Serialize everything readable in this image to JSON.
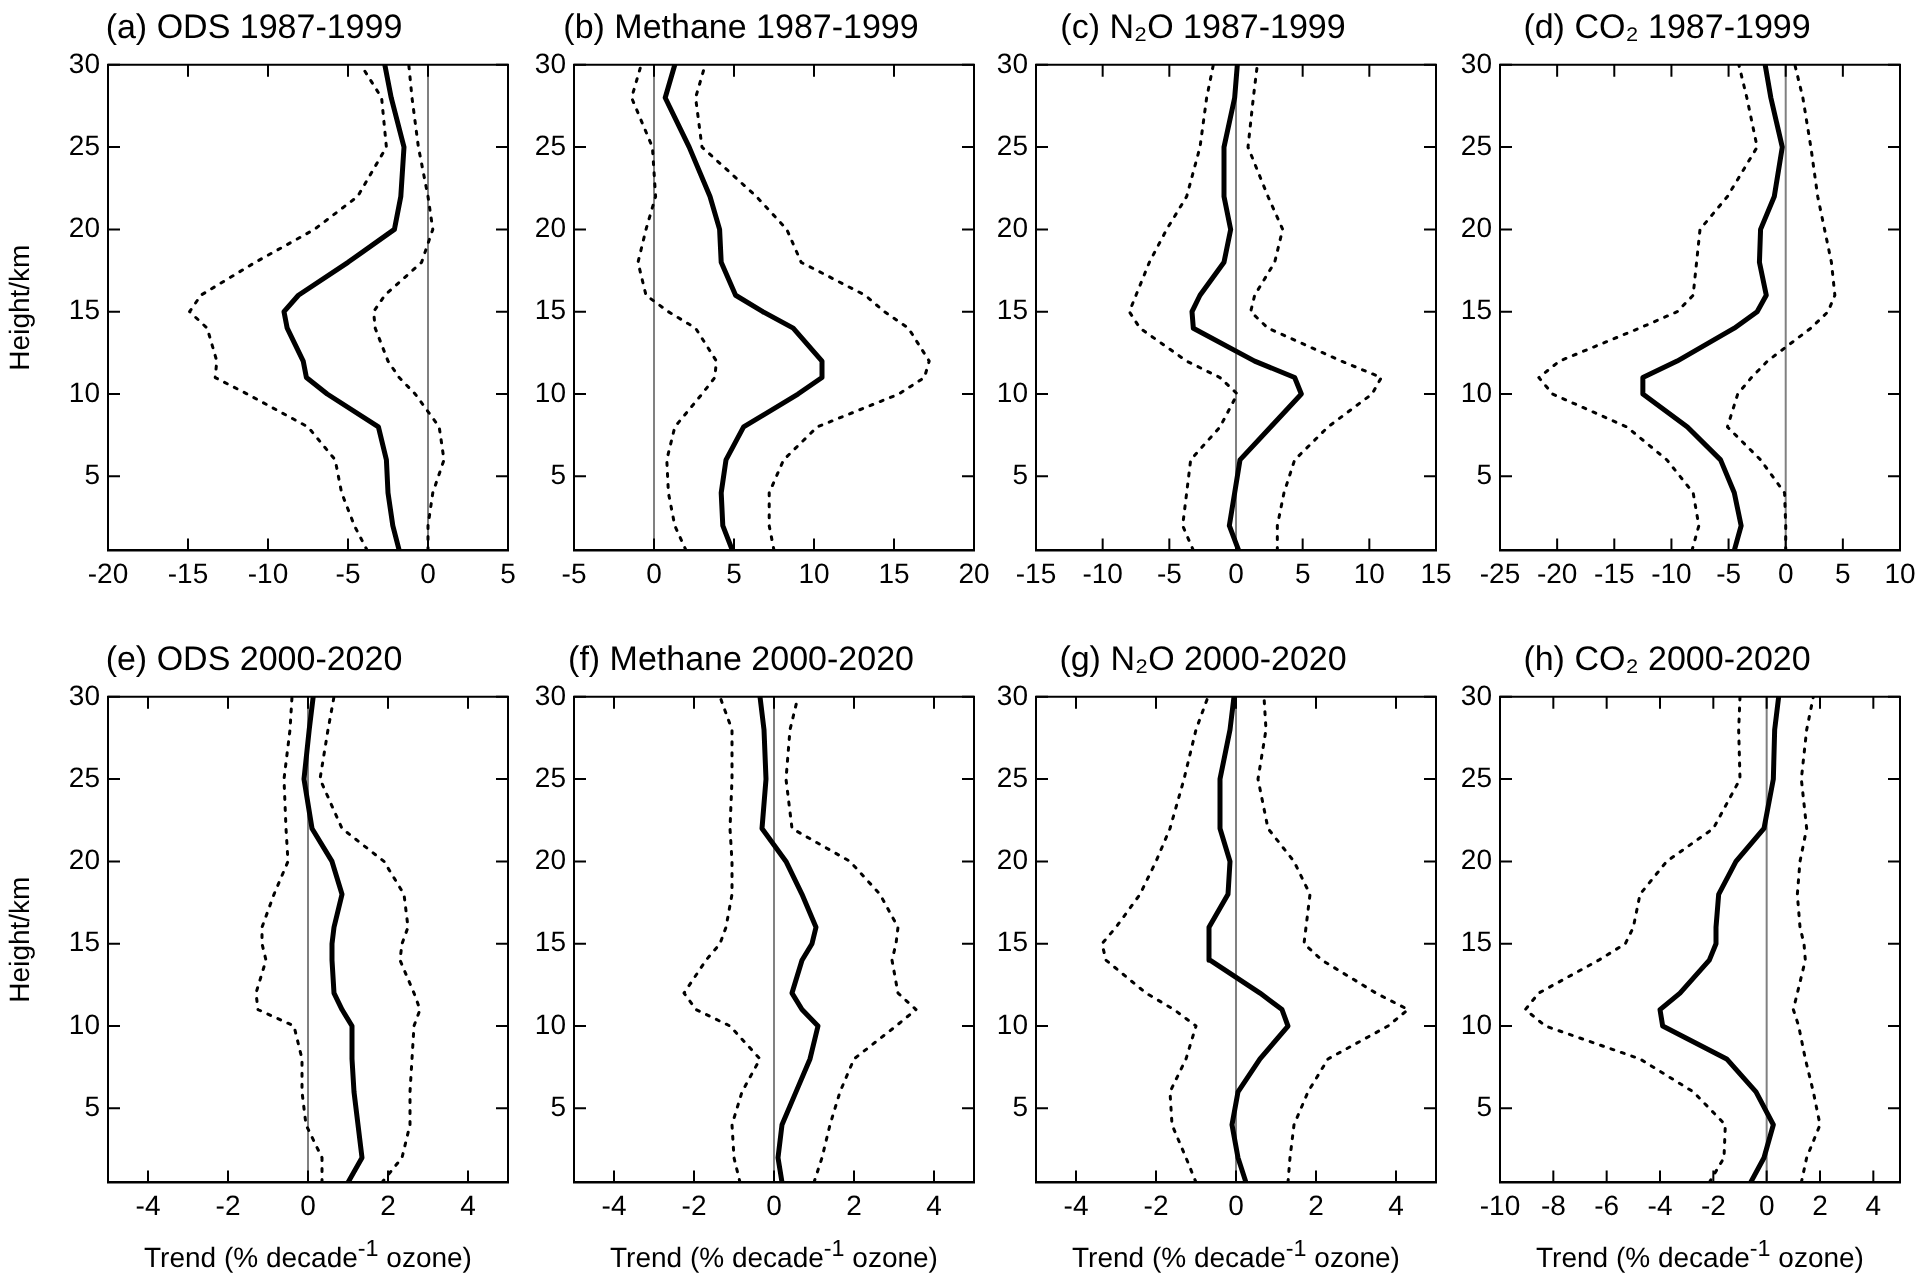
{
  "chart_data": [
    {
      "type": "line",
      "title": "(a) ODS 1987-1999",
      "ylabel": "Height/km",
      "xlim": [
        -20,
        5
      ],
      "xticks": [
        -20,
        -15,
        -10,
        -5,
        0,
        5
      ],
      "ylim": [
        0.5,
        30
      ],
      "yticks": [
        5,
        10,
        15,
        20,
        25,
        30
      ],
      "marker": "none",
      "ref_lines": [
        {
          "axis": "x",
          "value": 0,
          "color": "#808080"
        }
      ],
      "series": [
        {
          "color": "#000000",
          "line_style": "solid",
          "x": [
            -1.8,
            -2.2,
            -2.5,
            -2.6,
            -3.1,
            -6.3,
            -7.6,
            -7.8,
            -8.8,
            -9,
            -8.1,
            -5,
            -2.1,
            -1.7,
            -1.5,
            -2.3,
            -2.7
          ],
          "values": [
            0.5,
            2,
            4,
            6,
            8,
            10,
            11,
            12,
            14,
            15,
            16,
            18,
            20,
            22,
            25,
            28,
            30
          ]
        },
        {
          "color": "#000000",
          "line_style": "dotted",
          "x": [
            -3.8,
            -4.6,
            -5.4,
            -5.8,
            -7.5,
            -11.3,
            -13.3,
            -13.2,
            -13.8,
            -14.9,
            -14.2,
            -10.8,
            -7.1,
            -4.4,
            -2.6,
            -2.9,
            -4.2
          ],
          "values": [
            0.5,
            2,
            4,
            6,
            8,
            10,
            11,
            12,
            14,
            15,
            16,
            18,
            20,
            22,
            25,
            28,
            30
          ]
        },
        {
          "color": "#000000",
          "line_style": "dotted",
          "x": [
            0,
            0,
            0.3,
            1.0,
            0.7,
            -0.8,
            -1.8,
            -2.5,
            -3.3,
            -3.4,
            -2.7,
            -0.4,
            0.3,
            0,
            -0.6,
            -1,
            -1.2
          ],
          "values": [
            0.5,
            2,
            4,
            6,
            8,
            10,
            11,
            12,
            14,
            15,
            16,
            18,
            20,
            22,
            25,
            28,
            30
          ]
        }
      ]
    },
    {
      "type": "line",
      "title": "(b) Methane 1987-1999",
      "xlim": [
        -5,
        20
      ],
      "xticks": [
        -5,
        0,
        5,
        10,
        15,
        20
      ],
      "ylim": [
        0.5,
        30
      ],
      "yticks": [
        5,
        10,
        15,
        20,
        25,
        30
      ],
      "marker": "none",
      "ref_lines": [
        {
          "axis": "x",
          "value": 0,
          "color": "#808080"
        }
      ],
      "series": [
        {
          "color": "#000000",
          "line_style": "solid",
          "x": [
            4.9,
            4.3,
            4.2,
            4.5,
            5.6,
            9,
            10.5,
            10.5,
            8.7,
            6.8,
            5.1,
            4.2,
            4.1,
            3.5,
            2.2,
            0.7,
            1.3
          ],
          "values": [
            0.5,
            2,
            4,
            6,
            8,
            10,
            11,
            12,
            14,
            15,
            16,
            18,
            20,
            22,
            25,
            28,
            30
          ]
        },
        {
          "color": "#000000",
          "line_style": "dotted",
          "x": [
            2,
            1.3,
            0.9,
            0.8,
            1.3,
            3,
            3.8,
            3.9,
            2.6,
            0.9,
            -0.5,
            -1,
            -0.5,
            0.1,
            -0.1,
            -1.4,
            -0.8
          ],
          "values": [
            0.5,
            2,
            4,
            6,
            8,
            10,
            11,
            12,
            14,
            15,
            16,
            18,
            20,
            22,
            25,
            28,
            30
          ]
        },
        {
          "color": "#000000",
          "line_style": "dotted",
          "x": [
            7.5,
            7.2,
            7.2,
            8.1,
            10.2,
            15.3,
            16.9,
            17.2,
            15.9,
            14.4,
            13.2,
            9.2,
            8.3,
            6.4,
            3,
            2.6,
            3.2
          ],
          "values": [
            0.5,
            2,
            4,
            6,
            8,
            10,
            11,
            12,
            14,
            15,
            16,
            18,
            20,
            22,
            25,
            28,
            30
          ]
        }
      ]
    },
    {
      "type": "line",
      "title": "(c) N₂O 1987-1999",
      "xlim": [
        -15,
        15
      ],
      "xticks": [
        -15,
        -10,
        -5,
        0,
        5,
        10,
        15
      ],
      "ylim": [
        0.5,
        30
      ],
      "yticks": [
        5,
        10,
        15,
        20,
        25,
        30
      ],
      "marker": "none",
      "ref_lines": [
        {
          "axis": "x",
          "value": 0,
          "color": "#808080"
        }
      ],
      "series": [
        {
          "color": "#000000",
          "line_style": "solid",
          "x": [
            0.2,
            -0.5,
            -0.1,
            0.3,
            2.6,
            4.9,
            4.4,
            1.4,
            -3.2,
            -3.3,
            -2.7,
            -0.9,
            -0.4,
            -0.9,
            -0.9,
            -0.1,
            0.1
          ],
          "values": [
            0.5,
            2,
            4,
            6,
            8,
            10,
            11,
            12,
            14,
            15,
            16,
            18,
            20,
            22,
            25,
            28,
            30
          ]
        },
        {
          "color": "#000000",
          "line_style": "dotted",
          "x": [
            -3.2,
            -4,
            -3.7,
            -3.4,
            -1.2,
            0.1,
            -1.2,
            -3.7,
            -7.2,
            -8,
            -7.5,
            -6.5,
            -5.2,
            -3.7,
            -2.7,
            -2.2,
            -1.7
          ],
          "values": [
            0.5,
            2,
            4,
            6,
            8,
            10,
            11,
            12,
            14,
            15,
            16,
            18,
            20,
            22,
            25,
            28,
            30
          ]
        },
        {
          "color": "#000000",
          "line_style": "dotted",
          "x": [
            3.1,
            3.1,
            3.6,
            4.4,
            6.9,
            10.2,
            10.9,
            7.9,
            2.4,
            1.1,
            1.4,
            2.9,
            3.5,
            2.4,
            0.9,
            1.3,
            1.6
          ],
          "values": [
            0.5,
            2,
            4,
            6,
            8,
            10,
            11,
            12,
            14,
            15,
            16,
            18,
            20,
            22,
            25,
            28,
            30
          ]
        }
      ]
    },
    {
      "type": "line",
      "title": "(d) CO₂ 1987-1999",
      "xlim": [
        -25,
        10
      ],
      "xticks": [
        -25,
        -20,
        -15,
        -10,
        -5,
        0,
        5,
        10
      ],
      "ylim": [
        0.5,
        30
      ],
      "yticks": [
        5,
        10,
        15,
        20,
        25,
        30
      ],
      "marker": "none",
      "ref_lines": [
        {
          "axis": "x",
          "value": 0,
          "color": "#808080"
        }
      ],
      "series": [
        {
          "color": "#000000",
          "line_style": "solid",
          "x": [
            -4.5,
            -3.9,
            -4.5,
            -5.7,
            -8.6,
            -12.5,
            -12.5,
            -9.5,
            -4.5,
            -2.5,
            -1.7,
            -2.3,
            -2.2,
            -1,
            -0.3,
            -1.3,
            -1.8
          ],
          "values": [
            0.5,
            2,
            4,
            6,
            8,
            10,
            11,
            12,
            14,
            15,
            16,
            18,
            20,
            22,
            25,
            28,
            30
          ]
        },
        {
          "color": "#000000",
          "line_style": "dotted",
          "x": [
            -8.2,
            -7.6,
            -8.1,
            -10.4,
            -13.9,
            -20.4,
            -21.6,
            -19.8,
            -12.8,
            -9.5,
            -8.1,
            -7.8,
            -7.5,
            -5.1,
            -2.5,
            -3.4,
            -4.1
          ],
          "values": [
            0.5,
            2,
            4,
            6,
            8,
            10,
            11,
            12,
            14,
            15,
            16,
            18,
            20,
            22,
            25,
            28,
            30
          ]
        },
        {
          "color": "#000000",
          "line_style": "dotted",
          "x": [
            0,
            0,
            -0.1,
            -2.2,
            -5.1,
            -4.2,
            -3,
            -1.6,
            2.2,
            3.7,
            4.3,
            4,
            3.4,
            2.8,
            2.2,
            1.5,
            0.8
          ],
          "values": [
            0.5,
            2,
            4,
            6,
            8,
            10,
            11,
            12,
            14,
            15,
            16,
            18,
            20,
            22,
            25,
            28,
            30
          ]
        }
      ]
    },
    {
      "type": "line",
      "title": "(e) ODS 2000-2020",
      "xlabel": "Trend (% decade$^{-1}$ ozone)",
      "ylabel": "Height/km",
      "xlim": [
        -5,
        5
      ],
      "xticks": [
        -4,
        -2,
        0,
        2,
        4
      ],
      "ylim": [
        0.5,
        30
      ],
      "yticks": [
        5,
        10,
        15,
        20,
        25,
        30
      ],
      "marker": "none",
      "ref_lines": [
        {
          "axis": "x",
          "value": 0,
          "color": "#808080"
        }
      ],
      "series": [
        {
          "color": "#000000",
          "line_style": "solid",
          "x": [
            1,
            1.35,
            1.25,
            1.15,
            1.1,
            1.1,
            0.85,
            0.65,
            0.6,
            0.6,
            0.65,
            0.85,
            0.6,
            0.1,
            -0.1,
            0.03,
            0.13
          ],
          "values": [
            0.5,
            2,
            4,
            6,
            8,
            10,
            11,
            12,
            14,
            15,
            16,
            18,
            20,
            22,
            25,
            28,
            30
          ]
        },
        {
          "color": "#000000",
          "line_style": "dotted",
          "x": [
            0.35,
            0.35,
            -0.05,
            -0.15,
            -0.15,
            -0.35,
            -1.25,
            -1.3,
            -1.05,
            -1.15,
            -1.15,
            -0.85,
            -0.5,
            -0.55,
            -0.6,
            -0.45,
            -0.4
          ],
          "values": [
            0.5,
            2,
            4,
            6,
            8,
            10,
            11,
            12,
            14,
            15,
            16,
            18,
            20,
            22,
            25,
            28,
            30
          ]
        },
        {
          "color": "#000000",
          "line_style": "dotted",
          "x": [
            1.85,
            2.35,
            2.55,
            2.55,
            2.6,
            2.65,
            2.8,
            2.65,
            2.3,
            2.35,
            2.5,
            2.4,
            1.9,
            0.85,
            0.3,
            0.5,
            0.65
          ],
          "values": [
            0.5,
            2,
            4,
            6,
            8,
            10,
            11,
            12,
            14,
            15,
            16,
            18,
            20,
            22,
            25,
            28,
            30
          ]
        }
      ]
    },
    {
      "type": "line",
      "title": "(f) Methane 2000-2020",
      "xlabel": "Trend (% decade$^{-1}$ ozone)",
      "xlim": [
        -5,
        5
      ],
      "xticks": [
        -4,
        -2,
        0,
        2,
        4
      ],
      "ylim": [
        0.5,
        30
      ],
      "yticks": [
        5,
        10,
        15,
        20,
        25,
        30
      ],
      "marker": "none",
      "ref_lines": [
        {
          "axis": "x",
          "value": 0,
          "color": "#808080"
        }
      ],
      "series": [
        {
          "color": "#000000",
          "line_style": "solid",
          "x": [
            0.2,
            0.1,
            0.2,
            0.55,
            0.9,
            1.1,
            0.7,
            0.45,
            0.7,
            0.95,
            1.05,
            0.7,
            0.3,
            -0.3,
            -0.2,
            -0.25,
            -0.35
          ],
          "values": [
            0.5,
            2,
            4,
            6,
            8,
            10,
            11,
            12,
            14,
            15,
            16,
            18,
            20,
            22,
            25,
            28,
            30
          ]
        },
        {
          "color": "#000000",
          "line_style": "dotted",
          "x": [
            -0.85,
            -1,
            -1.05,
            -0.8,
            -0.35,
            -1.1,
            -1.95,
            -2.25,
            -1.7,
            -1.35,
            -1.2,
            -1.05,
            -1.05,
            -1.1,
            -1.05,
            -1.05,
            -1.35
          ],
          "values": [
            0.5,
            2,
            4,
            6,
            8,
            10,
            11,
            12,
            14,
            15,
            16,
            18,
            20,
            22,
            25,
            28,
            30
          ]
        },
        {
          "color": "#000000",
          "line_style": "dotted",
          "x": [
            1,
            1.2,
            1.4,
            1.65,
            2,
            3.05,
            3.55,
            3.1,
            2.95,
            3.05,
            3.1,
            2.65,
            1.9,
            0.45,
            0.3,
            0.4,
            0.6
          ],
          "values": [
            0.5,
            2,
            4,
            6,
            8,
            10,
            11,
            12,
            14,
            15,
            16,
            18,
            20,
            22,
            25,
            28,
            30
          ]
        }
      ]
    },
    {
      "type": "line",
      "title": "(g) N₂O 2000-2020",
      "xlabel": "Trend (% decade$^{-1}$ ozone)",
      "xlim": [
        -5,
        5
      ],
      "xticks": [
        -4,
        -2,
        0,
        2,
        4
      ],
      "ylim": [
        0.5,
        30
      ],
      "yticks": [
        5,
        10,
        15,
        20,
        25,
        30
      ],
      "marker": "none",
      "ref_lines": [
        {
          "axis": "x",
          "value": 0,
          "color": "#808080"
        }
      ],
      "series": [
        {
          "color": "#000000",
          "line_style": "solid",
          "x": [
            0.25,
            0.05,
            -0.1,
            0.05,
            0.6,
            1.3,
            1.15,
            0.6,
            -0.65,
            -0.7,
            -0.65,
            -0.2,
            -0.15,
            -0.4,
            -0.4,
            -0.15,
            -0.05
          ],
          "values": [
            0.5,
            2,
            4,
            6,
            8,
            10,
            11,
            12,
            14,
            15,
            16,
            18,
            20,
            22,
            25,
            28,
            30
          ]
        },
        {
          "color": "#000000",
          "line_style": "dotted",
          "x": [
            -1,
            -1.25,
            -1.6,
            -1.65,
            -1.25,
            -1,
            -1.55,
            -2.25,
            -3.25,
            -3.35,
            -3,
            -2.4,
            -2,
            -1.65,
            -1.3,
            -1,
            -0.7
          ],
          "values": [
            0.5,
            2,
            4,
            6,
            8,
            10,
            11,
            12,
            14,
            15,
            16,
            18,
            20,
            22,
            25,
            28,
            30
          ]
        },
        {
          "color": "#000000",
          "line_style": "dotted",
          "x": [
            1.3,
            1.35,
            1.45,
            1.8,
            2.3,
            3.8,
            4.3,
            3.5,
            2.15,
            1.7,
            1.75,
            1.85,
            1.45,
            0.8,
            0.55,
            0.75,
            0.7
          ],
          "values": [
            0.5,
            2,
            4,
            6,
            8,
            10,
            11,
            12,
            14,
            15,
            16,
            18,
            20,
            22,
            25,
            28,
            30
          ]
        }
      ]
    },
    {
      "type": "line",
      "title": "(h) CO₂ 2000-2020",
      "xlabel": "Trend (% decade$^{-1}$ ozone)",
      "xlim": [
        -10,
        5
      ],
      "xticks": [
        -10,
        -8,
        -6,
        -4,
        -2,
        0,
        2,
        4
      ],
      "ylim": [
        0.5,
        30
      ],
      "yticks": [
        5,
        10,
        15,
        20,
        25,
        30
      ],
      "marker": "none",
      "ref_lines": [
        {
          "axis": "x",
          "value": 0,
          "color": "#808080"
        }
      ],
      "series": [
        {
          "color": "#000000",
          "line_style": "solid",
          "x": [
            -0.6,
            -0.1,
            0.25,
            -0.4,
            -1.5,
            -3.9,
            -4,
            -3.25,
            -2.15,
            -1.9,
            -1.9,
            -1.8,
            -1.15,
            -0.1,
            0.25,
            0.3,
            0.45
          ],
          "values": [
            0.5,
            2,
            4,
            6,
            8,
            10,
            11,
            12,
            14,
            15,
            16,
            18,
            20,
            22,
            25,
            28,
            30
          ]
        },
        {
          "color": "#000000",
          "line_style": "dotted",
          "x": [
            -2.15,
            -1.6,
            -1.55,
            -2.75,
            -4.75,
            -8.3,
            -9.05,
            -8.55,
            -6.3,
            -5.3,
            -5,
            -4.75,
            -3.75,
            -2,
            -1,
            -1.05,
            -1
          ],
          "values": [
            0.5,
            2,
            4,
            6,
            8,
            10,
            11,
            12,
            14,
            15,
            16,
            18,
            20,
            22,
            25,
            28,
            30
          ]
        },
        {
          "color": "#000000",
          "line_style": "dotted",
          "x": [
            1.3,
            1.5,
            2,
            1.75,
            1.45,
            1.2,
            1,
            1.15,
            1.45,
            1.4,
            1.25,
            1.15,
            1.25,
            1.5,
            1.3,
            1.5,
            1.75
          ],
          "values": [
            0.5,
            2,
            4,
            6,
            8,
            10,
            11,
            12,
            14,
            15,
            16,
            18,
            20,
            22,
            25,
            28,
            30
          ]
        }
      ]
    }
  ]
}
